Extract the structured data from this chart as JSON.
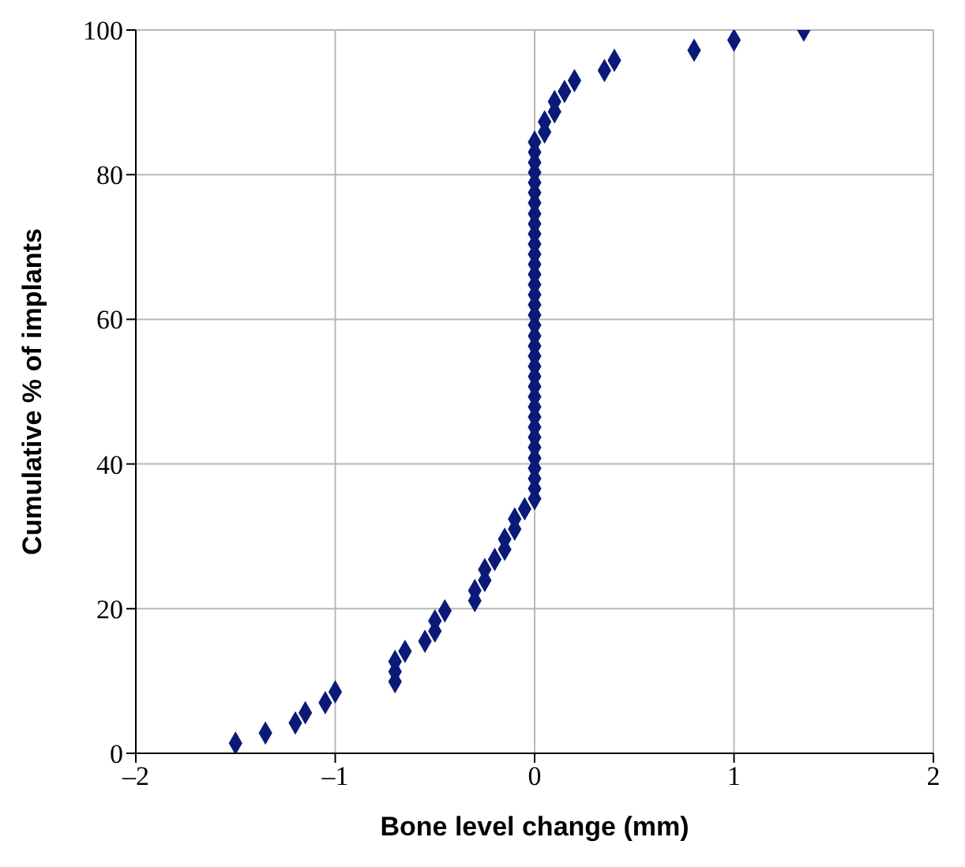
{
  "chart_data": {
    "type": "scatter",
    "xlabel": "Bone level change (mm)",
    "ylabel": "Cumulative % of implants",
    "series": [
      {
        "color": "#0b1a78",
        "x": [
          -1.5,
          -1.35,
          -1.2,
          -1.15,
          -1.05,
          -1.0,
          -0.7,
          -0.7,
          -0.7,
          -0.65,
          -0.55,
          -0.5,
          -0.5,
          -0.45,
          -0.3,
          -0.3,
          -0.25,
          -0.25,
          -0.2,
          -0.15,
          -0.15,
          -0.1,
          -0.1,
          -0.05,
          0,
          0,
          0,
          0,
          0,
          0,
          0,
          0,
          0,
          0,
          0,
          0,
          0,
          0,
          0,
          0,
          0,
          0,
          0,
          0,
          0,
          0,
          0,
          0,
          0,
          0,
          0,
          0,
          0,
          0,
          0,
          0,
          0,
          0,
          0,
          0,
          0.05,
          0.05,
          0.1,
          0.1,
          0.15,
          0.2,
          0.35,
          0.4,
          0.8,
          1.0,
          1.35
        ],
        "values": [
          1.4,
          2.8,
          4.2,
          5.6,
          7.0,
          8.5,
          9.9,
          11.3,
          12.7,
          14.1,
          15.5,
          16.9,
          18.3,
          19.7,
          21.1,
          22.5,
          23.9,
          25.4,
          26.8,
          28.2,
          29.6,
          31.0,
          32.4,
          33.8,
          35.2,
          36.6,
          38.0,
          39.4,
          40.8,
          42.3,
          43.7,
          45.1,
          46.5,
          47.9,
          49.3,
          50.7,
          52.1,
          53.5,
          54.9,
          56.3,
          57.7,
          59.2,
          60.6,
          62.0,
          63.4,
          64.8,
          66.2,
          67.6,
          69.0,
          70.4,
          71.8,
          73.2,
          74.6,
          76.1,
          77.5,
          78.9,
          80.3,
          81.7,
          83.1,
          84.5,
          85.9,
          87.3,
          88.7,
          90.1,
          91.5,
          93.0,
          94.4,
          95.8,
          97.2,
          98.6,
          100.0
        ]
      }
    ],
    "xlim": [
      -2,
      2
    ],
    "xticks": [
      {
        "value": -2,
        "label": "–2"
      },
      {
        "value": -1,
        "label": "–1"
      },
      0,
      1,
      2
    ],
    "ylim": [
      0,
      100
    ],
    "yticks": [
      0,
      20,
      40,
      60,
      80,
      100
    ],
    "grid": true,
    "marker": "diamond"
  }
}
